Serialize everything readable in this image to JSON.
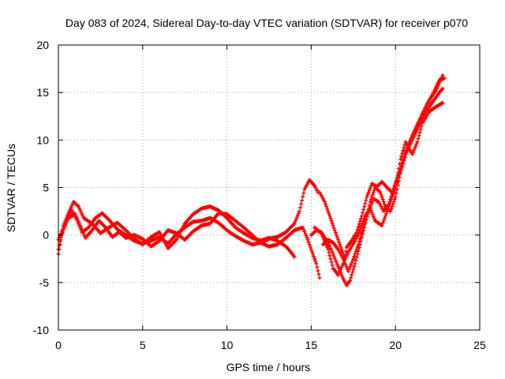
{
  "chart_data": {
    "type": "scatter",
    "title": "Day 083 of 2024, Sidereal Day-to-day VTEC variation (SDTVAR) for receiver p070",
    "xlabel": "GPS time / hours",
    "ylabel": "SDTVAR / TECUs",
    "xlim": [
      0,
      25
    ],
    "ylim": [
      -10,
      20
    ],
    "xticks": [
      0,
      5,
      10,
      15,
      20,
      25
    ],
    "yticks": [
      -10,
      -5,
      0,
      5,
      10,
      15,
      20
    ],
    "grid": true,
    "marker": "+",
    "series_color": "#ff0000",
    "series": [
      {
        "name": "track-1",
        "points": [
          [
            0.0,
            -2.0
          ],
          [
            0.2,
            0.0
          ],
          [
            0.5,
            1.5
          ],
          [
            0.8,
            2.6
          ],
          [
            1.1,
            1.6
          ],
          [
            1.4,
            0.3
          ],
          [
            1.8,
            0.8
          ],
          [
            2.2,
            1.8
          ],
          [
            2.6,
            2.3
          ],
          [
            3.0,
            1.6
          ],
          [
            3.5,
            0.6
          ],
          [
            4.0,
            0.0
          ],
          [
            4.5,
            -0.6
          ],
          [
            5.0,
            -0.9
          ],
          [
            5.5,
            -0.6
          ],
          [
            6.0,
            -0.2
          ],
          [
            6.5,
            -0.9
          ],
          [
            7.0,
            0.1
          ],
          [
            7.5,
            0.8
          ],
          [
            8.0,
            1.4
          ],
          [
            8.5,
            1.5
          ],
          [
            9.0,
            1.8
          ],
          [
            9.5,
            1.3
          ],
          [
            10.0,
            0.5
          ],
          [
            10.5,
            -0.1
          ],
          [
            11.0,
            -0.6
          ],
          [
            11.5,
            -1.0
          ],
          [
            12.0,
            -0.8
          ],
          [
            12.5,
            -0.4
          ],
          [
            13.0,
            -0.2
          ],
          [
            13.5,
            0.3
          ],
          [
            14.0,
            1.2
          ],
          [
            14.3,
            2.5
          ],
          [
            14.6,
            4.8
          ],
          [
            14.9,
            5.8
          ],
          [
            15.2,
            5.2
          ],
          [
            15.4,
            4.5
          ]
        ]
      },
      {
        "name": "track-2",
        "points": [
          [
            0.0,
            -1.5
          ],
          [
            0.3,
            1.0
          ],
          [
            0.6,
            2.3
          ],
          [
            0.9,
            3.5
          ],
          [
            1.2,
            3.0
          ],
          [
            1.5,
            1.8
          ],
          [
            2.0,
            1.2
          ],
          [
            2.5,
            0.2
          ],
          [
            3.0,
            0.8
          ],
          [
            3.5,
            1.3
          ],
          [
            4.0,
            0.5
          ],
          [
            4.5,
            -0.4
          ],
          [
            5.0,
            -1.0
          ],
          [
            5.5,
            -0.2
          ],
          [
            6.0,
            0.3
          ],
          [
            6.5,
            -1.4
          ],
          [
            7.0,
            -0.5
          ],
          [
            7.5,
            1.2
          ],
          [
            8.0,
            2.2
          ],
          [
            8.5,
            2.8
          ],
          [
            9.0,
            3.0
          ],
          [
            9.5,
            2.6
          ],
          [
            10.0,
            1.8
          ],
          [
            10.5,
            0.8
          ],
          [
            11.0,
            0.2
          ],
          [
            11.5,
            -0.3
          ],
          [
            12.0,
            -0.6
          ],
          [
            12.5,
            -0.3
          ],
          [
            13.0,
            -0.6
          ],
          [
            13.5,
            -1.2
          ],
          [
            13.8,
            -1.8
          ],
          [
            14.0,
            -2.3
          ]
        ]
      },
      {
        "name": "track-3",
        "points": [
          [
            0.0,
            -0.5
          ],
          [
            0.3,
            0.8
          ],
          [
            0.6,
            1.8
          ],
          [
            1.0,
            2.2
          ],
          [
            1.3,
            1.0
          ],
          [
            1.6,
            -0.3
          ],
          [
            2.0,
            0.5
          ],
          [
            2.4,
            1.5
          ],
          [
            2.8,
            0.8
          ],
          [
            3.2,
            -0.2
          ],
          [
            3.6,
            0.3
          ],
          [
            4.0,
            -0.3
          ],
          [
            4.5,
            0.0
          ],
          [
            5.0,
            -0.4
          ],
          [
            5.5,
            -1.2
          ],
          [
            6.0,
            -0.6
          ],
          [
            6.5,
            0.5
          ],
          [
            7.0,
            0.2
          ],
          [
            7.5,
            -0.5
          ],
          [
            8.0,
            0.4
          ],
          [
            8.5,
            1.0
          ],
          [
            9.0,
            1.2
          ],
          [
            9.5,
            2.3
          ],
          [
            10.0,
            2.2
          ],
          [
            10.5,
            1.5
          ],
          [
            11.0,
            0.8
          ],
          [
            11.5,
            0.0
          ],
          [
            12.0,
            -0.8
          ],
          [
            12.5,
            -1.2
          ],
          [
            13.0,
            -1.0
          ],
          [
            13.5,
            -0.3
          ],
          [
            14.0,
            0.5
          ],
          [
            14.5,
            0.8
          ],
          [
            14.8,
            -0.5
          ],
          [
            15.0,
            -1.5
          ],
          [
            15.3,
            -3.0
          ],
          [
            15.5,
            -4.5
          ]
        ]
      },
      {
        "name": "track-4",
        "points": [
          [
            15.0,
            0.0
          ],
          [
            15.3,
            0.5
          ],
          [
            15.6,
            0.3
          ],
          [
            16.0,
            -0.8
          ],
          [
            16.3,
            -2.0
          ],
          [
            16.6,
            -3.3
          ],
          [
            16.9,
            -4.6
          ],
          [
            17.1,
            -5.3
          ],
          [
            17.3,
            -4.8
          ],
          [
            17.6,
            -3.0
          ],
          [
            17.9,
            -1.0
          ],
          [
            18.2,
            1.2
          ],
          [
            18.5,
            3.5
          ],
          [
            18.8,
            5.0
          ],
          [
            19.1,
            4.5
          ],
          [
            19.4,
            3.0
          ],
          [
            19.7,
            2.5
          ],
          [
            20.0,
            4.0
          ],
          [
            20.3,
            6.5
          ],
          [
            20.6,
            8.5
          ],
          [
            21.0,
            10.0
          ],
          [
            21.4,
            11.5
          ],
          [
            21.8,
            13.0
          ],
          [
            22.2,
            14.0
          ],
          [
            22.6,
            15.0
          ],
          [
            22.8,
            15.4
          ]
        ]
      },
      {
        "name": "track-5",
        "points": [
          [
            15.2,
            0.8
          ],
          [
            15.6,
            0.2
          ],
          [
            16.0,
            -1.5
          ],
          [
            16.3,
            -3.5
          ],
          [
            16.6,
            -4.2
          ],
          [
            16.9,
            -3.0
          ],
          [
            17.1,
            -1.3
          ],
          [
            17.4,
            -0.6
          ],
          [
            17.7,
            0.3
          ],
          [
            18.0,
            2.0
          ],
          [
            18.3,
            4.0
          ],
          [
            18.6,
            5.4
          ],
          [
            18.9,
            5.1
          ],
          [
            19.2,
            5.6
          ],
          [
            19.5,
            5.0
          ],
          [
            19.8,
            4.5
          ],
          [
            20.1,
            5.8
          ],
          [
            20.4,
            7.5
          ],
          [
            20.7,
            9.0
          ],
          [
            21.0,
            10.3
          ],
          [
            21.3,
            11.5
          ],
          [
            21.6,
            12.8
          ],
          [
            22.0,
            14.2
          ],
          [
            22.4,
            15.2
          ],
          [
            22.8,
            16.8
          ]
        ]
      },
      {
        "name": "track-6",
        "points": [
          [
            15.5,
            4.5
          ],
          [
            15.8,
            3.5
          ],
          [
            16.1,
            2.0
          ],
          [
            16.4,
            0.5
          ],
          [
            16.7,
            -1.0
          ],
          [
            17.0,
            -2.5
          ],
          [
            17.3,
            -1.5
          ],
          [
            17.6,
            -0.6
          ],
          [
            17.9,
            0.5
          ],
          [
            18.2,
            2.0
          ],
          [
            18.5,
            2.8
          ],
          [
            18.8,
            1.5
          ],
          [
            19.2,
            1.0
          ],
          [
            19.6,
            3.0
          ],
          [
            20.0,
            5.0
          ],
          [
            20.3,
            8.0
          ],
          [
            20.6,
            9.8
          ],
          [
            21.0,
            8.5
          ],
          [
            21.3,
            9.8
          ],
          [
            21.6,
            11.8
          ],
          [
            22.0,
            13.0
          ],
          [
            22.4,
            13.5
          ],
          [
            22.8,
            13.9
          ]
        ]
      },
      {
        "name": "track-7",
        "points": [
          [
            15.7,
            -1.0
          ],
          [
            16.0,
            -0.5
          ],
          [
            16.3,
            -0.8
          ],
          [
            16.6,
            -1.5
          ],
          [
            16.9,
            -2.5
          ],
          [
            17.2,
            -3.8
          ],
          [
            17.5,
            -2.5
          ],
          [
            17.8,
            -1.0
          ],
          [
            18.1,
            0.8
          ],
          [
            18.4,
            2.5
          ],
          [
            18.7,
            3.8
          ],
          [
            19.0,
            3.5
          ],
          [
            19.3,
            2.5
          ],
          [
            19.6,
            3.2
          ],
          [
            20.0,
            5.5
          ],
          [
            20.3,
            7.0
          ],
          [
            20.6,
            8.8
          ],
          [
            21.0,
            10.5
          ],
          [
            21.4,
            12.0
          ],
          [
            21.8,
            13.5
          ],
          [
            22.2,
            14.8
          ],
          [
            22.6,
            16.3
          ],
          [
            22.9,
            16.5
          ]
        ]
      }
    ]
  }
}
